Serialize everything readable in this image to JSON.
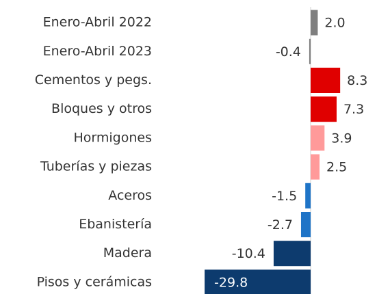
{
  "chart_data": {
    "type": "bar",
    "orientation": "horizontal",
    "categories": [
      "Enero-Abril 2022",
      "Enero-Abril 2023",
      "Cementos y pegs.",
      "Bloques y otros",
      "Hormigones",
      "Tuberías y piezas",
      "Aceros",
      "Ebanistería",
      "Madera",
      "Pisos y cerámicas"
    ],
    "values": [
      2.0,
      -0.4,
      8.3,
      7.3,
      3.9,
      2.5,
      -1.5,
      -2.7,
      -10.4,
      -29.8
    ],
    "value_labels": [
      "2.0",
      "-0.4",
      "8.3",
      "7.3",
      "3.9",
      "2.5",
      "-1.5",
      "-2.7",
      "-10.4",
      "-29.8"
    ],
    "colors": [
      "#7f7f7f",
      "#7f7f7f",
      "#e00000",
      "#e00000",
      "#ff9a9a",
      "#ff9a9a",
      "#1f74c7",
      "#1f74c7",
      "#0d3b6e",
      "#0d3b6e"
    ]
  }
}
